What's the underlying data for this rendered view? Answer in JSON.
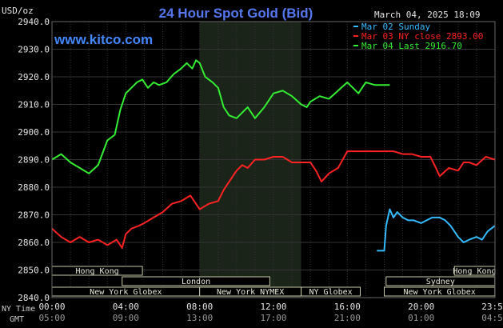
{
  "chart_data": {
    "type": "line",
    "title": "24 Hour Spot Gold (Bid)",
    "subtitle": "www.kitco.com",
    "date_label": "March 04, 2025 18:09",
    "ylabel": "USD/oz",
    "ylim": [
      2840,
      2940
    ],
    "y_ticks": [
      "2940.0",
      "2930.0",
      "2920.0",
      "2910.0",
      "2900.0",
      "2890.0",
      "2880.0",
      "2870.0",
      "2860.0",
      "2850.0",
      "2840.0"
    ],
    "x_tick_labels": [
      "00:00",
      "04:00",
      "08:00",
      "12:00",
      "16:00",
      "20:00",
      "23:59"
    ],
    "gmt_tick_labels": [
      "05:00",
      "09:00",
      "13:00",
      "17:00",
      "21:00",
      "01:00",
      "04:59"
    ],
    "x_row_labels": [
      "NY Time",
      "GMT"
    ],
    "nymex_shading": [
      8.0,
      13.5
    ],
    "grid": true,
    "legend_position": "top-right",
    "legend": [
      {
        "label": "Mar 02 Sunday",
        "color": "#33bbff"
      },
      {
        "label": "Mar 03 NY close 2893.00",
        "color": "#ff2222"
      },
      {
        "label": "Mar 04 Last 2916.70",
        "color": "#33ee33"
      }
    ],
    "sessions": [
      {
        "label": "Hong Kong",
        "start": 0,
        "end": 4.9,
        "row": 0
      },
      {
        "label": "Hong Kong",
        "start": 21.8,
        "end": 23.99,
        "row": 0
      },
      {
        "label": "London",
        "start": 3.8,
        "end": 11.8,
        "row": 1
      },
      {
        "label": "Sydney",
        "start": 18.1,
        "end": 23.99,
        "row": 1
      },
      {
        "label": "New York Globex",
        "start": 0,
        "end": 8.0,
        "row": 2
      },
      {
        "label": "New York NYMEX",
        "start": 8.0,
        "end": 13.5,
        "row": 2
      },
      {
        "label": "NY Globex",
        "start": 13.5,
        "end": 16.7,
        "row": 2
      },
      {
        "label": "New York Globex",
        "start": 18.0,
        "end": 23.99,
        "row": 2
      }
    ],
    "series": [
      {
        "name": "Mar 04 Last 2916.70",
        "color": "#33ee33",
        "x": [
          0,
          0.5,
          1.0,
          1.5,
          2.0,
          2.5,
          3.0,
          3.4,
          3.7,
          4.0,
          4.3,
          4.6,
          4.9,
          5.2,
          5.5,
          5.8,
          6.2,
          6.6,
          7.0,
          7.3,
          7.6,
          7.8,
          8.0,
          8.3,
          8.7,
          9.0,
          9.3,
          9.6,
          10.0,
          10.3,
          10.6,
          11.0,
          11.5,
          12.0,
          12.5,
          13.0,
          13.5,
          13.8,
          14.0,
          14.5,
          15.0,
          15.5,
          16.0,
          16.3,
          16.6,
          17.0,
          17.5,
          18.0,
          18.3
        ],
        "y": [
          2890,
          2892,
          2889,
          2887,
          2885,
          2888,
          2897,
          2899,
          2908,
          2914,
          2916,
          2918,
          2919,
          2916,
          2918,
          2917,
          2918,
          2921,
          2923,
          2925,
          2923,
          2926,
          2925,
          2920,
          2918,
          2916,
          2909,
          2906,
          2905,
          2907,
          2909,
          2905,
          2909,
          2914,
          2915,
          2913,
          2910,
          2909,
          2911,
          2913,
          2912,
          2915,
          2918,
          2916,
          2914,
          2918,
          2917,
          2917,
          2917
        ]
      },
      {
        "name": "Mar 03 NY close 2893.00",
        "color": "#ff2222",
        "x": [
          0,
          0.5,
          1.0,
          1.5,
          2.0,
          2.5,
          3.0,
          3.5,
          3.8,
          4.0,
          4.3,
          4.7,
          5.0,
          5.5,
          6.0,
          6.5,
          7.0,
          7.5,
          8.0,
          8.5,
          9.0,
          9.3,
          9.6,
          10.0,
          10.3,
          10.6,
          11.0,
          11.5,
          12.0,
          12.5,
          13.0,
          13.5,
          14.0,
          14.3,
          14.6,
          15.0,
          15.5,
          16.0,
          16.5,
          17.0,
          17.5,
          18.0,
          18.5,
          19.0,
          19.5,
          20.0,
          20.5,
          20.8,
          21.0,
          21.5,
          22.0,
          22.3,
          22.6,
          23.0,
          23.5,
          23.99
        ],
        "y": [
          2865,
          2862,
          2860,
          2862,
          2860,
          2861,
          2859,
          2861,
          2858,
          2863,
          2865,
          2866,
          2867,
          2869,
          2871,
          2874,
          2875,
          2877,
          2872,
          2874,
          2875,
          2879,
          2882,
          2886,
          2888,
          2887,
          2890,
          2890,
          2891,
          2891,
          2889,
          2889,
          2889,
          2886,
          2882,
          2885,
          2887,
          2893,
          2893,
          2893,
          2893,
          2893,
          2893,
          2892,
          2892,
          2891,
          2891,
          2887,
          2884,
          2887,
          2886,
          2889,
          2889,
          2888,
          2891,
          2890
        ]
      },
      {
        "name": "Mar 02 Sunday",
        "color": "#33bbff",
        "x": [
          17.6,
          18.0,
          18.1,
          18.3,
          18.5,
          18.7,
          19.0,
          19.3,
          19.6,
          20.0,
          20.3,
          20.6,
          21.0,
          21.3,
          21.6,
          22.0,
          22.3,
          22.6,
          23.0,
          23.3,
          23.6,
          23.99
        ],
        "y": [
          2857,
          2857,
          2866,
          2872,
          2869,
          2871,
          2869,
          2868,
          2868,
          2867,
          2868,
          2869,
          2869,
          2868,
          2866,
          2862,
          2860,
          2861,
          2862,
          2861,
          2864,
          2866
        ]
      }
    ]
  }
}
